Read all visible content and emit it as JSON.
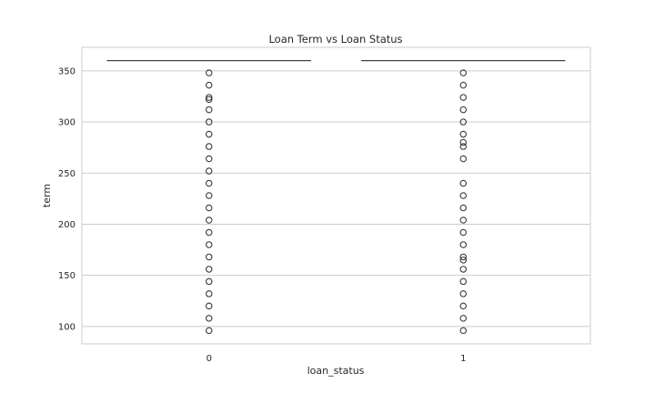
{
  "chart_data": {
    "type": "box",
    "title": "Loan Term vs Loan Status",
    "xlabel": "loan_status",
    "ylabel": "term",
    "categories": [
      "0",
      "1"
    ],
    "ylim": [
      83,
      373
    ],
    "yticks": [
      100,
      150,
      200,
      250,
      300,
      350
    ],
    "grid": true,
    "series": [
      {
        "category": "0",
        "median": 360,
        "q1": 360,
        "q3": 360,
        "whisker_low": 360,
        "whisker_high": 360,
        "outliers": [
          348,
          336,
          324,
          322,
          312,
          300,
          288,
          276,
          264,
          252,
          240,
          228,
          216,
          204,
          192,
          180,
          168,
          156,
          144,
          132,
          120,
          108,
          96
        ]
      },
      {
        "category": "1",
        "median": 360,
        "q1": 360,
        "q3": 360,
        "whisker_low": 360,
        "whisker_high": 360,
        "outliers": [
          348,
          336,
          324,
          312,
          300,
          288,
          280,
          276,
          264,
          240,
          228,
          216,
          204,
          192,
          180,
          168,
          165,
          156,
          144,
          132,
          120,
          108,
          96
        ]
      }
    ]
  }
}
